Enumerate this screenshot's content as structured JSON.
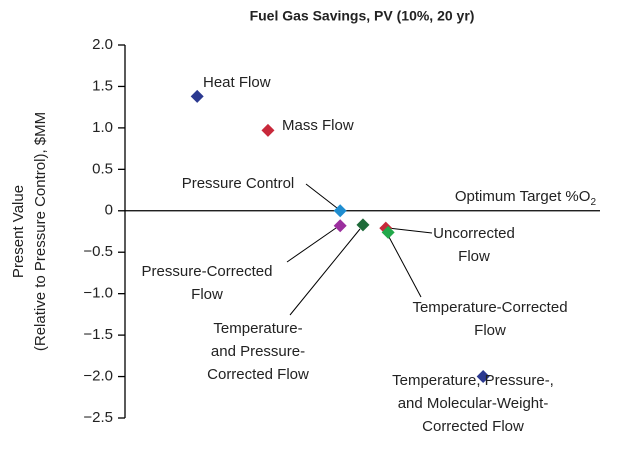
{
  "chart_data": {
    "type": "scatter",
    "title": "Fuel Gas Savings, PV (10%, 20 yr)",
    "y_label": [
      "Present Value",
      "(Relative to Pressure Control), $MM"
    ],
    "annotation": {
      "text": "Optimum Target %O",
      "subscript": "2"
    },
    "xlim": [
      0,
      10
    ],
    "ylim": [
      -2.5,
      2.0
    ],
    "yticks": [
      {
        "value": 2.0,
        "label": "2.0"
      },
      {
        "value": 1.5,
        "label": "1.5"
      },
      {
        "value": 1.0,
        "label": "1.0"
      },
      {
        "value": 0.5,
        "label": "0.5"
      },
      0,
      {
        "value": -0.5,
        "label": "−0.5"
      },
      {
        "value": -1.0,
        "label": "−1.0"
      },
      {
        "value": -1.5,
        "label": "−1.5"
      },
      {
        "value": -2.0,
        "label": "−2.0"
      },
      {
        "value": -2.5,
        "label": "−2.5"
      }
    ],
    "points": [
      {
        "label": [
          "Heat Flow"
        ],
        "color": "#2b3990",
        "x": 1.52,
        "y": 1.38
      },
      {
        "label": [
          "Mass Flow"
        ],
        "color": "#c8283a",
        "x": 3.01,
        "y": 0.97
      },
      {
        "label": [
          "Pressure Control"
        ],
        "color": "#1f8dd0",
        "x": 4.53,
        "y": 0
      },
      {
        "label": [
          "Pressure-Corrected",
          "Flow"
        ],
        "color": "#9b2f9e",
        "x": 4.53,
        "y": -0.18
      },
      {
        "label": [
          "Temperature-",
          "and Pressure-",
          "Corrected Flow"
        ],
        "color": "#1f6b3a",
        "x": 5.01,
        "y": -0.17
      },
      {
        "label": [
          "Uncorrected",
          "Flow"
        ],
        "color": "#c8283a",
        "x": 5.49,
        "y": -0.21
      },
      {
        "label": [
          "Temperature-Corrected",
          "Flow"
        ],
        "color": "#22a84a",
        "x": 5.54,
        "y": -0.26
      },
      {
        "label": [
          "Temperature, Pressure-,",
          "and Molecular-Weight-",
          "Corrected Flow"
        ],
        "color": "#2b3990",
        "x": 7.54,
        "y": -2.0
      }
    ]
  }
}
